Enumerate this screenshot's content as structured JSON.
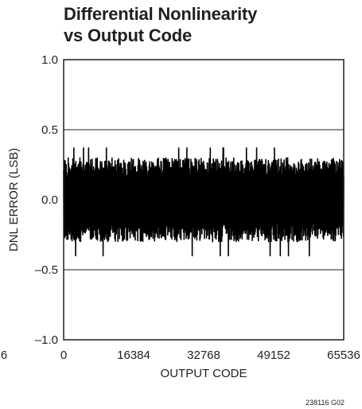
{
  "chart_data": {
    "type": "line",
    "title": [
      "Differential Nonlinearity",
      "vs Output Code"
    ],
    "xlabel": "OUTPUT CODE",
    "ylabel": "DNL ERROR (LSB)",
    "xlim": [
      0,
      65536
    ],
    "ylim": [
      -1.0,
      1.0
    ],
    "xticks": [
      "0",
      "16384",
      "32768",
      "49152",
      "65536"
    ],
    "yticks": [
      "1.0",
      "0.5",
      "0.0",
      "–0.5",
      "–1.0"
    ],
    "y_limit_lines": [
      0.5,
      -0.5
    ],
    "series": [
      {
        "approx_envelope_upper": 0.3,
        "approx_envelope_lower": -0.3,
        "approx_peak_max": 0.37,
        "approx_peak_min": -0.4,
        "color": "#000000"
      }
    ],
    "cut_off_left_label": "6",
    "figure_id": "238116 G02"
  }
}
